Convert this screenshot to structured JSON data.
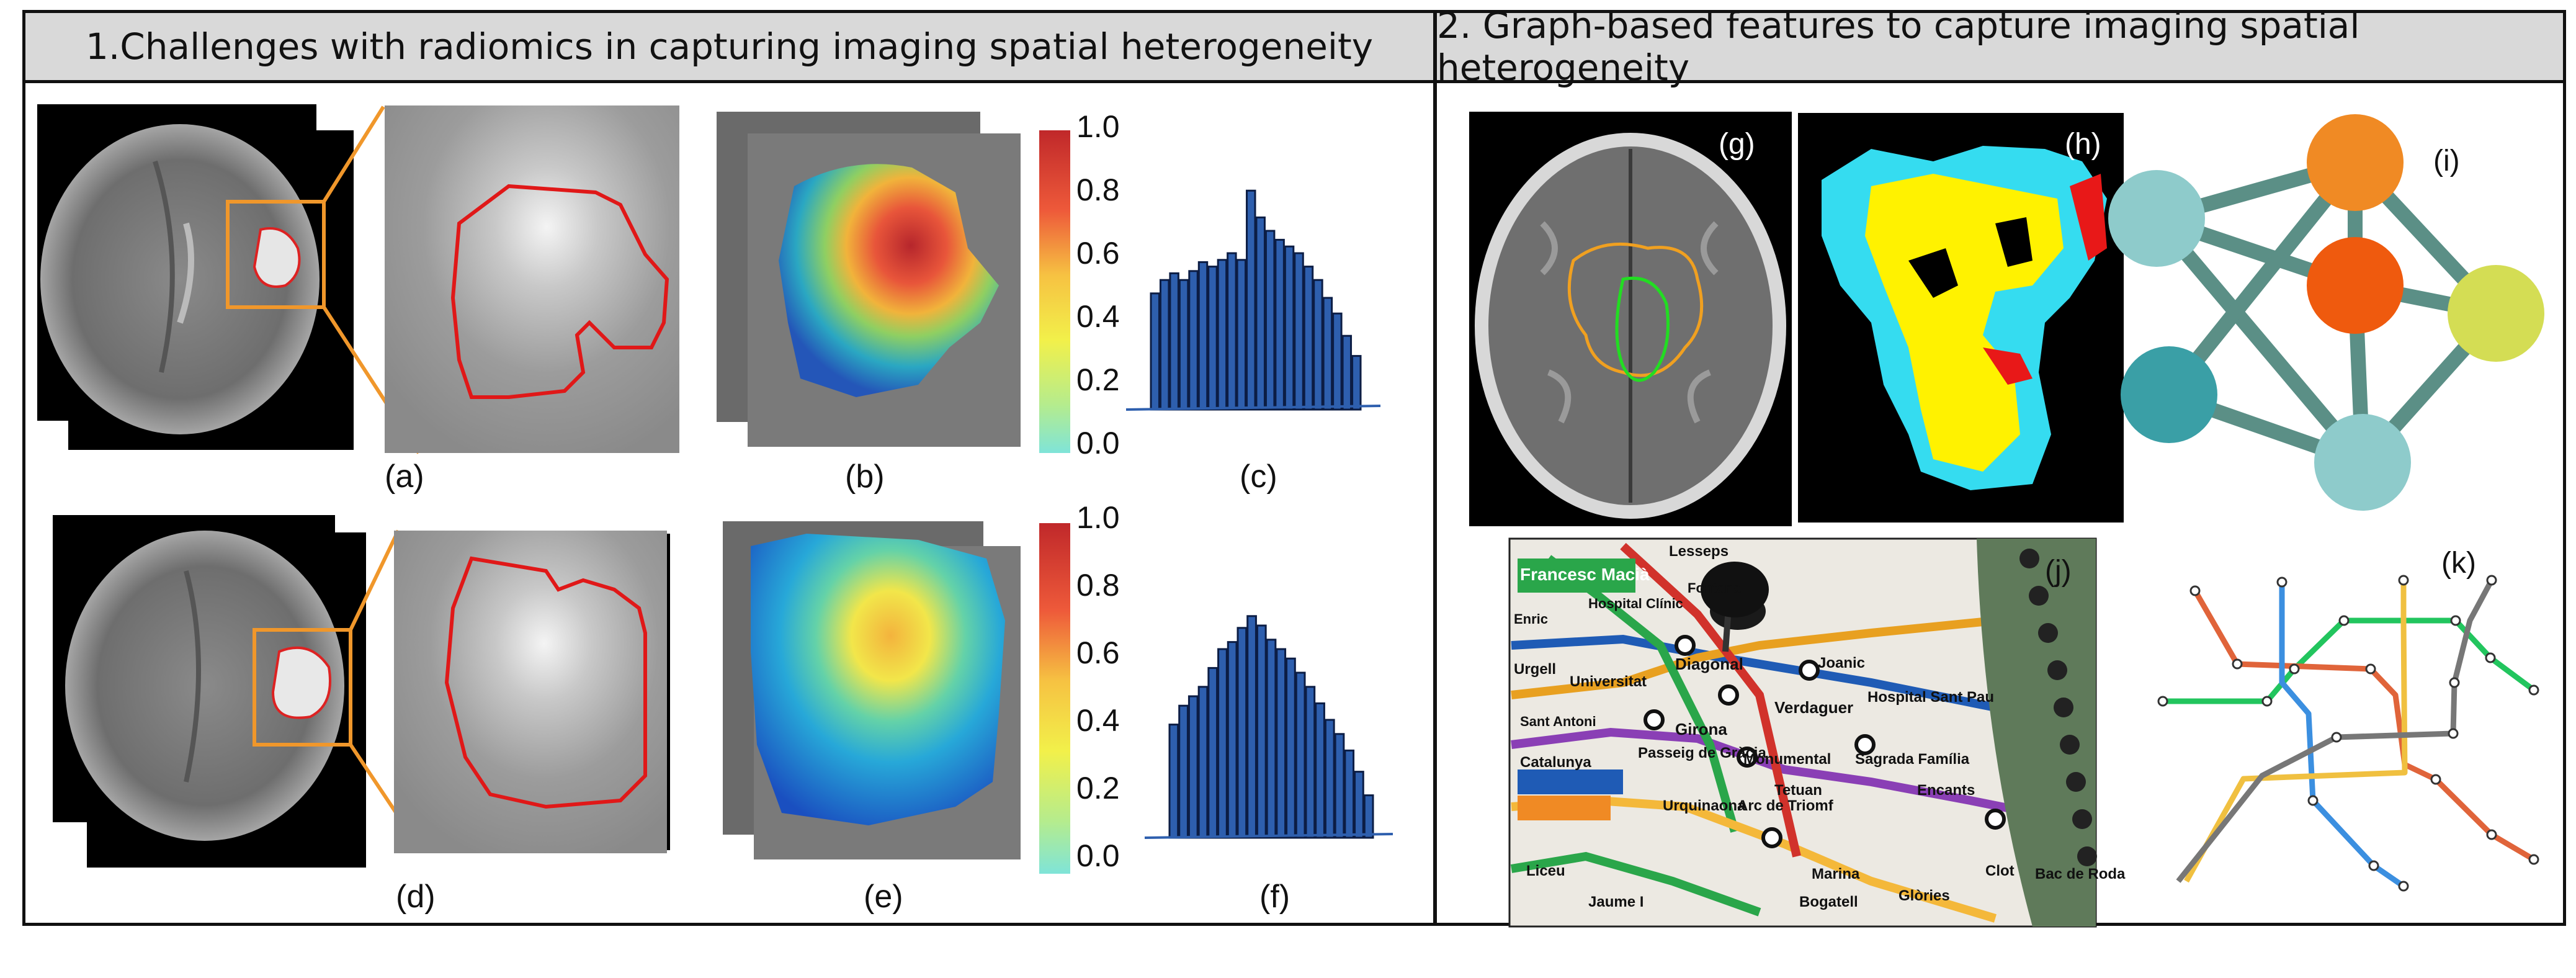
{
  "sections": {
    "left_title": "1.Challenges with radiomics in capturing imaging spatial heterogeneity",
    "right_title": "2. Graph-based features to capture imaging spatial heterogeneity"
  },
  "panel_labels": {
    "a": "(a)",
    "b": "(b)",
    "c": "(c)",
    "d": "(d)",
    "e": "(e)",
    "f": "(f)",
    "g": "(g)",
    "h": "(h)",
    "i": "(i)",
    "j": "(j)",
    "k": "(k)"
  },
  "colorbar_ticks": [
    "1.0",
    "0.8",
    "0.6",
    "0.4",
    "0.2",
    "0.0"
  ],
  "histograms": {
    "c": [
      0.52,
      0.58,
      0.61,
      0.58,
      0.62,
      0.66,
      0.64,
      0.67,
      0.7,
      0.67,
      0.98,
      0.86,
      0.8,
      0.76,
      0.73,
      0.7,
      0.64,
      0.58,
      0.5,
      0.43,
      0.33,
      0.24
    ],
    "f": [
      0.48,
      0.56,
      0.6,
      0.64,
      0.72,
      0.8,
      0.83,
      0.89,
      0.94,
      0.9,
      0.84,
      0.8,
      0.76,
      0.7,
      0.64,
      0.57,
      0.5,
      0.44,
      0.37,
      0.28,
      0.18
    ]
  },
  "graph_nodes": [
    {
      "id": "n1",
      "color": "#8ecbcb"
    },
    {
      "id": "n2",
      "color": "#f08a24"
    },
    {
      "id": "n3",
      "color": "#ef5a0e"
    },
    {
      "id": "n4",
      "color": "#d4dd54"
    },
    {
      "id": "n5",
      "color": "#3a9fa6"
    },
    {
      "id": "n6",
      "color": "#8ecbcb"
    }
  ],
  "metro_map_labels": [
    "Francesc Macià",
    "Lesseps",
    "Fontana",
    "Hospital Clínic",
    "Diagonal",
    "Joanic",
    "Urgell",
    "Universitat",
    "Girona",
    "Verdaguer",
    "Hospital Sant Pau",
    "Catalunya",
    "Passeig de Gràcia",
    "Monumental",
    "Sagrada Família",
    "Urquinaona",
    "Tetuan",
    "Arc de Triomf",
    "Encants",
    "Liceu",
    "Jaume I",
    "Marina",
    "Bogatell",
    "Glòries",
    "Clot",
    "Bac de Roda",
    "Sant Antoni",
    "Enric"
  ]
}
